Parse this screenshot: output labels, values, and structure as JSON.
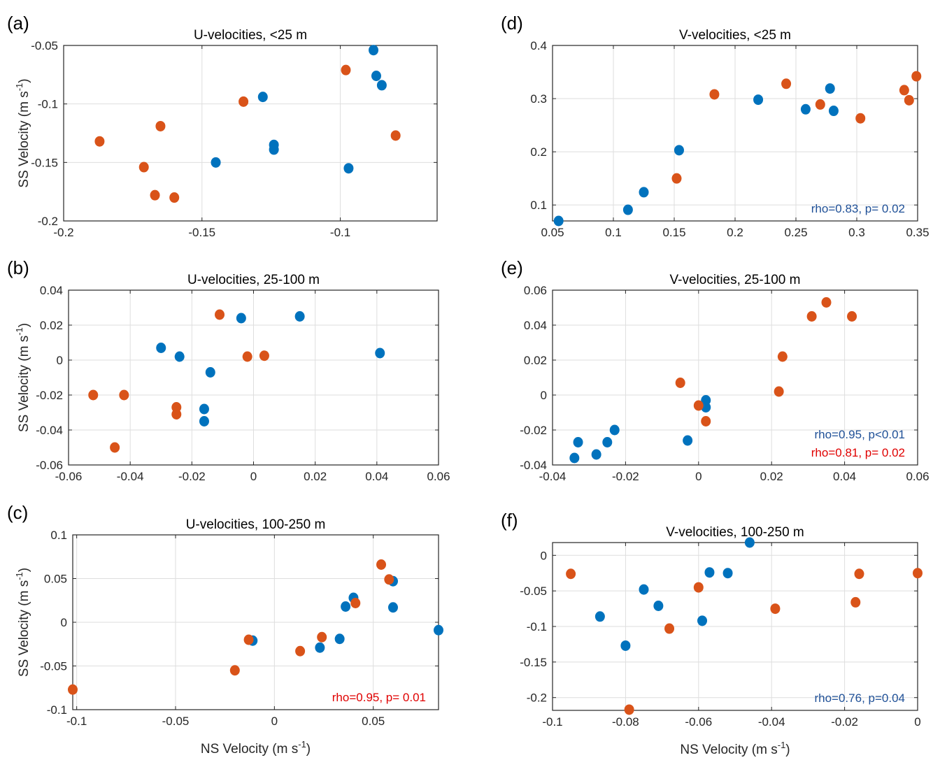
{
  "colors": {
    "series_blue": "#0072BD",
    "series_orange": "#D95319",
    "annot_blue": "#1F5097",
    "annot_red": "#E00000",
    "grid": "#DEDEDE"
  },
  "chart_data": [
    {
      "panel": "(a)",
      "type": "scatter",
      "title": "U-velocities, <25 m",
      "xlabel": "",
      "ylabel": "SS Velocity (m s-1)",
      "xlim": [
        -0.2,
        -0.065
      ],
      "ylim": [
        -0.2,
        -0.05
      ],
      "xticks": [
        -0.2,
        -0.15,
        -0.1
      ],
      "xtick_labels": [
        "-0.2",
        "-0.15",
        "-0.1"
      ],
      "yticks": [
        -0.2,
        -0.15,
        -0.1,
        -0.05
      ],
      "ytick_labels": [
        "-0.2",
        "-0.15",
        "-0.1",
        "-0.05"
      ],
      "grid": true,
      "series": [
        {
          "name": "blue",
          "color": "#0072BD",
          "x": [
            -0.145,
            -0.128,
            -0.124,
            -0.124,
            -0.097,
            -0.088,
            -0.087,
            -0.085
          ],
          "y": [
            -0.15,
            -0.094,
            -0.135,
            -0.139,
            -0.155,
            -0.054,
            -0.076,
            -0.084
          ]
        },
        {
          "name": "orange",
          "color": "#D95319",
          "x": [
            -0.187,
            -0.171,
            -0.165,
            -0.167,
            -0.16,
            -0.135,
            -0.098,
            -0.08
          ],
          "y": [
            -0.132,
            -0.154,
            -0.119,
            -0.178,
            -0.18,
            -0.098,
            -0.071,
            -0.127
          ]
        }
      ],
      "annotations": []
    },
    {
      "panel": "(b)",
      "type": "scatter",
      "title": "U-velocities, 25-100 m",
      "xlabel": "",
      "ylabel": "SS Velocity (m s-1)",
      "xlim": [
        -0.06,
        0.06
      ],
      "ylim": [
        -0.06,
        0.04
      ],
      "xticks": [
        -0.06,
        -0.04,
        -0.02,
        0,
        0.02,
        0.04,
        0.06
      ],
      "xtick_labels": [
        "-0.06",
        "-0.04",
        "-0.02",
        "0",
        "0.02",
        "0.04",
        "0.06"
      ],
      "yticks": [
        -0.06,
        -0.04,
        -0.02,
        0,
        0.02,
        0.04
      ],
      "ytick_labels": [
        "-0.06",
        "-0.04",
        "-0.02",
        "0",
        "0.02",
        "0.04"
      ],
      "grid": true,
      "series": [
        {
          "name": "blue",
          "color": "#0072BD",
          "x": [
            -0.03,
            -0.024,
            -0.014,
            -0.016,
            -0.016,
            -0.004,
            0.015,
            0.041
          ],
          "y": [
            0.007,
            0.002,
            -0.007,
            -0.028,
            -0.035,
            0.024,
            0.025,
            0.004
          ]
        },
        {
          "name": "orange",
          "color": "#D95319",
          "x": [
            -0.052,
            -0.042,
            -0.045,
            -0.025,
            -0.025,
            -0.011,
            -0.002,
            0.0035
          ],
          "y": [
            -0.02,
            -0.02,
            -0.05,
            -0.027,
            -0.031,
            0.026,
            0.002,
            0.0025
          ]
        }
      ],
      "annotations": []
    },
    {
      "panel": "(c)",
      "type": "scatter",
      "title": "U-velocities, 100-250 m",
      "xlabel": "NS Velocity (m s-1)",
      "ylabel": "SS Velocity (m s-1)",
      "xlim": [
        -0.102,
        0.083
      ],
      "ylim": [
        -0.1,
        0.1
      ],
      "xticks": [
        -0.1,
        -0.05,
        0,
        0.05
      ],
      "xtick_labels": [
        "-0.1",
        "-0.05",
        "0",
        "0.05"
      ],
      "yticks": [
        -0.1,
        -0.05,
        0,
        0.05,
        0.1
      ],
      "ytick_labels": [
        "-0.1",
        "-0.05",
        "0",
        "0.05",
        "0.1"
      ],
      "grid": true,
      "series": [
        {
          "name": "blue",
          "color": "#0072BD",
          "x": [
            -0.011,
            0.023,
            0.033,
            0.036,
            0.04,
            0.06,
            0.06,
            0.083
          ],
          "y": [
            -0.021,
            -0.029,
            -0.019,
            0.018,
            0.028,
            0.047,
            0.017,
            -0.009
          ]
        },
        {
          "name": "orange",
          "color": "#D95319",
          "x": [
            -0.102,
            -0.02,
            -0.013,
            0.013,
            0.024,
            0.041,
            0.054,
            0.058
          ],
          "y": [
            -0.077,
            -0.055,
            -0.02,
            -0.033,
            -0.017,
            0.022,
            0.066,
            0.049
          ]
        }
      ],
      "annotations": [
        {
          "text": "rho=0.95, p= 0.01",
          "color": "red"
        }
      ]
    },
    {
      "panel": "(d)",
      "type": "scatter",
      "title": "V-velocities, <25 m",
      "xlabel": "",
      "ylabel": "",
      "xlim": [
        0.05,
        0.35
      ],
      "ylim": [
        0.07,
        0.4
      ],
      "xticks": [
        0.05,
        0.1,
        0.15,
        0.2,
        0.25,
        0.3,
        0.35
      ],
      "xtick_labels": [
        "0.05",
        "0.1",
        "0.15",
        "0.2",
        "0.25",
        "0.3",
        "0.35"
      ],
      "yticks": [
        0.1,
        0.2,
        0.3,
        0.4
      ],
      "ytick_labels": [
        "0.1",
        "0.2",
        "0.3",
        "0.4"
      ],
      "grid": true,
      "series": [
        {
          "name": "blue",
          "color": "#0072BD",
          "x": [
            0.055,
            0.112,
            0.125,
            0.154,
            0.219,
            0.258,
            0.278,
            0.281
          ],
          "y": [
            0.07,
            0.091,
            0.124,
            0.203,
            0.298,
            0.28,
            0.319,
            0.277
          ]
        },
        {
          "name": "orange",
          "color": "#D95319",
          "x": [
            0.152,
            0.183,
            0.242,
            0.27,
            0.303,
            0.339,
            0.343,
            0.349
          ],
          "y": [
            0.15,
            0.308,
            0.328,
            0.289,
            0.263,
            0.316,
            0.297,
            0.342
          ]
        }
      ],
      "annotations": [
        {
          "text": "rho=0.83, p= 0.02",
          "color": "blue"
        }
      ]
    },
    {
      "panel": "(e)",
      "type": "scatter",
      "title": "V-velocities, 25-100 m",
      "xlabel": "",
      "ylabel": "",
      "xlim": [
        -0.04,
        0.06
      ],
      "ylim": [
        -0.04,
        0.06
      ],
      "xticks": [
        -0.04,
        -0.02,
        0,
        0.02,
        0.04,
        0.06
      ],
      "xtick_labels": [
        "-0.04",
        "-0.02",
        "0",
        "0.02",
        "0.04",
        "0.06"
      ],
      "yticks": [
        -0.04,
        -0.02,
        0,
        0.02,
        0.04,
        0.06
      ],
      "ytick_labels": [
        "-0.04",
        "-0.02",
        "0",
        "0.02",
        "0.04",
        "0.06"
      ],
      "grid": true,
      "series": [
        {
          "name": "blue",
          "color": "#0072BD",
          "x": [
            -0.034,
            -0.033,
            -0.028,
            -0.025,
            -0.023,
            -0.003,
            0.002,
            0.002
          ],
          "y": [
            -0.036,
            -0.027,
            -0.034,
            -0.027,
            -0.02,
            -0.026,
            -0.003,
            -0.007
          ]
        },
        {
          "name": "orange",
          "color": "#D95319",
          "x": [
            -0.005,
            0.0,
            0.002,
            0.022,
            0.023,
            0.031,
            0.035,
            0.042
          ],
          "y": [
            0.007,
            -0.006,
            -0.015,
            0.002,
            0.022,
            0.045,
            0.053,
            0.045
          ]
        }
      ],
      "annotations": [
        {
          "text": "rho=0.95, p<0.01",
          "color": "blue"
        },
        {
          "text": "rho=0.81, p= 0.02",
          "color": "red"
        }
      ]
    },
    {
      "panel": "(f)",
      "type": "scatter",
      "title": "V-velocities, 100-250 m",
      "xlabel": "NS Velocity (m s-1)",
      "ylabel": "",
      "xlim": [
        -0.1,
        0
      ],
      "ylim": [
        -0.218,
        0.018
      ],
      "xticks": [
        -0.1,
        -0.08,
        -0.06,
        -0.04,
        -0.02,
        0
      ],
      "xtick_labels": [
        "-0.1",
        "-0.08",
        "-0.06",
        "-0.04",
        "-0.02",
        "0"
      ],
      "yticks": [
        -0.2,
        -0.15,
        -0.1,
        -0.05,
        0
      ],
      "ytick_labels": [
        "-0.2",
        "-0.15",
        "-0.1",
        "-0.05",
        "0"
      ],
      "grid": true,
      "series": [
        {
          "name": "blue",
          "color": "#0072BD",
          "x": [
            -0.087,
            -0.08,
            -0.075,
            -0.071,
            -0.059,
            -0.057,
            -0.052,
            -0.046
          ],
          "y": [
            -0.086,
            -0.127,
            -0.048,
            -0.071,
            -0.092,
            -0.024,
            -0.025,
            0.018
          ]
        },
        {
          "name": "orange",
          "color": "#D95319",
          "x": [
            -0.095,
            -0.079,
            -0.068,
            -0.06,
            -0.039,
            -0.017,
            -0.016,
            0.0
          ],
          "y": [
            -0.026,
            -0.217,
            -0.103,
            -0.045,
            -0.075,
            -0.066,
            -0.026,
            -0.025
          ]
        }
      ],
      "annotations": [
        {
          "text": "rho=0.76, p=0.04",
          "color": "blue"
        }
      ]
    }
  ]
}
